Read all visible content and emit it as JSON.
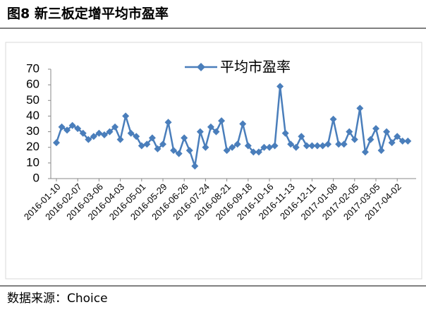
{
  "chart_data": {
    "type": "line",
    "title": "图8 新三板定增平均市盈率",
    "source": "数据来源：Choice",
    "categories": [
      "2016-01-10",
      null,
      null,
      null,
      "2016-02-07",
      null,
      null,
      null,
      "2016-03-06",
      null,
      null,
      null,
      "2016-04-03",
      null,
      null,
      null,
      "2016-05-01",
      null,
      null,
      null,
      "2016-05-29",
      null,
      null,
      null,
      "2016-06-26",
      null,
      null,
      null,
      "2016-07-24",
      null,
      null,
      null,
      "2016-08-21",
      null,
      null,
      null,
      "2016-09-18",
      null,
      null,
      null,
      "2016-10-16",
      null,
      null,
      null,
      "2016-11-13",
      null,
      null,
      null,
      "2016-12-11",
      null,
      null,
      null,
      "2017-01-08",
      null,
      null,
      null,
      "2017-02-05",
      null,
      null,
      null,
      "2017-03-05",
      null,
      null,
      null,
      "2017-04-02",
      null,
      null
    ],
    "series": [
      {
        "name": "平均市盈率",
        "color": "#4a7ebb",
        "values": [
          23,
          33,
          31,
          34,
          32,
          29,
          25,
          27,
          29,
          28,
          30,
          33,
          25,
          40,
          29,
          27,
          21,
          22,
          26,
          19,
          22,
          36,
          18,
          16,
          26,
          18,
          8,
          30,
          20,
          33,
          30,
          37,
          18,
          20,
          22,
          35,
          21,
          17,
          17,
          20,
          20,
          21,
          59,
          29,
          22,
          20,
          27,
          21,
          21,
          21,
          21,
          22,
          38,
          22,
          22,
          30,
          25,
          45,
          17,
          25,
          32,
          18,
          30,
          23,
          27,
          24,
          24
        ]
      }
    ],
    "ylim": [
      0,
      70
    ],
    "yticks": [
      0,
      10,
      20,
      30,
      40,
      50,
      60,
      70
    ]
  }
}
